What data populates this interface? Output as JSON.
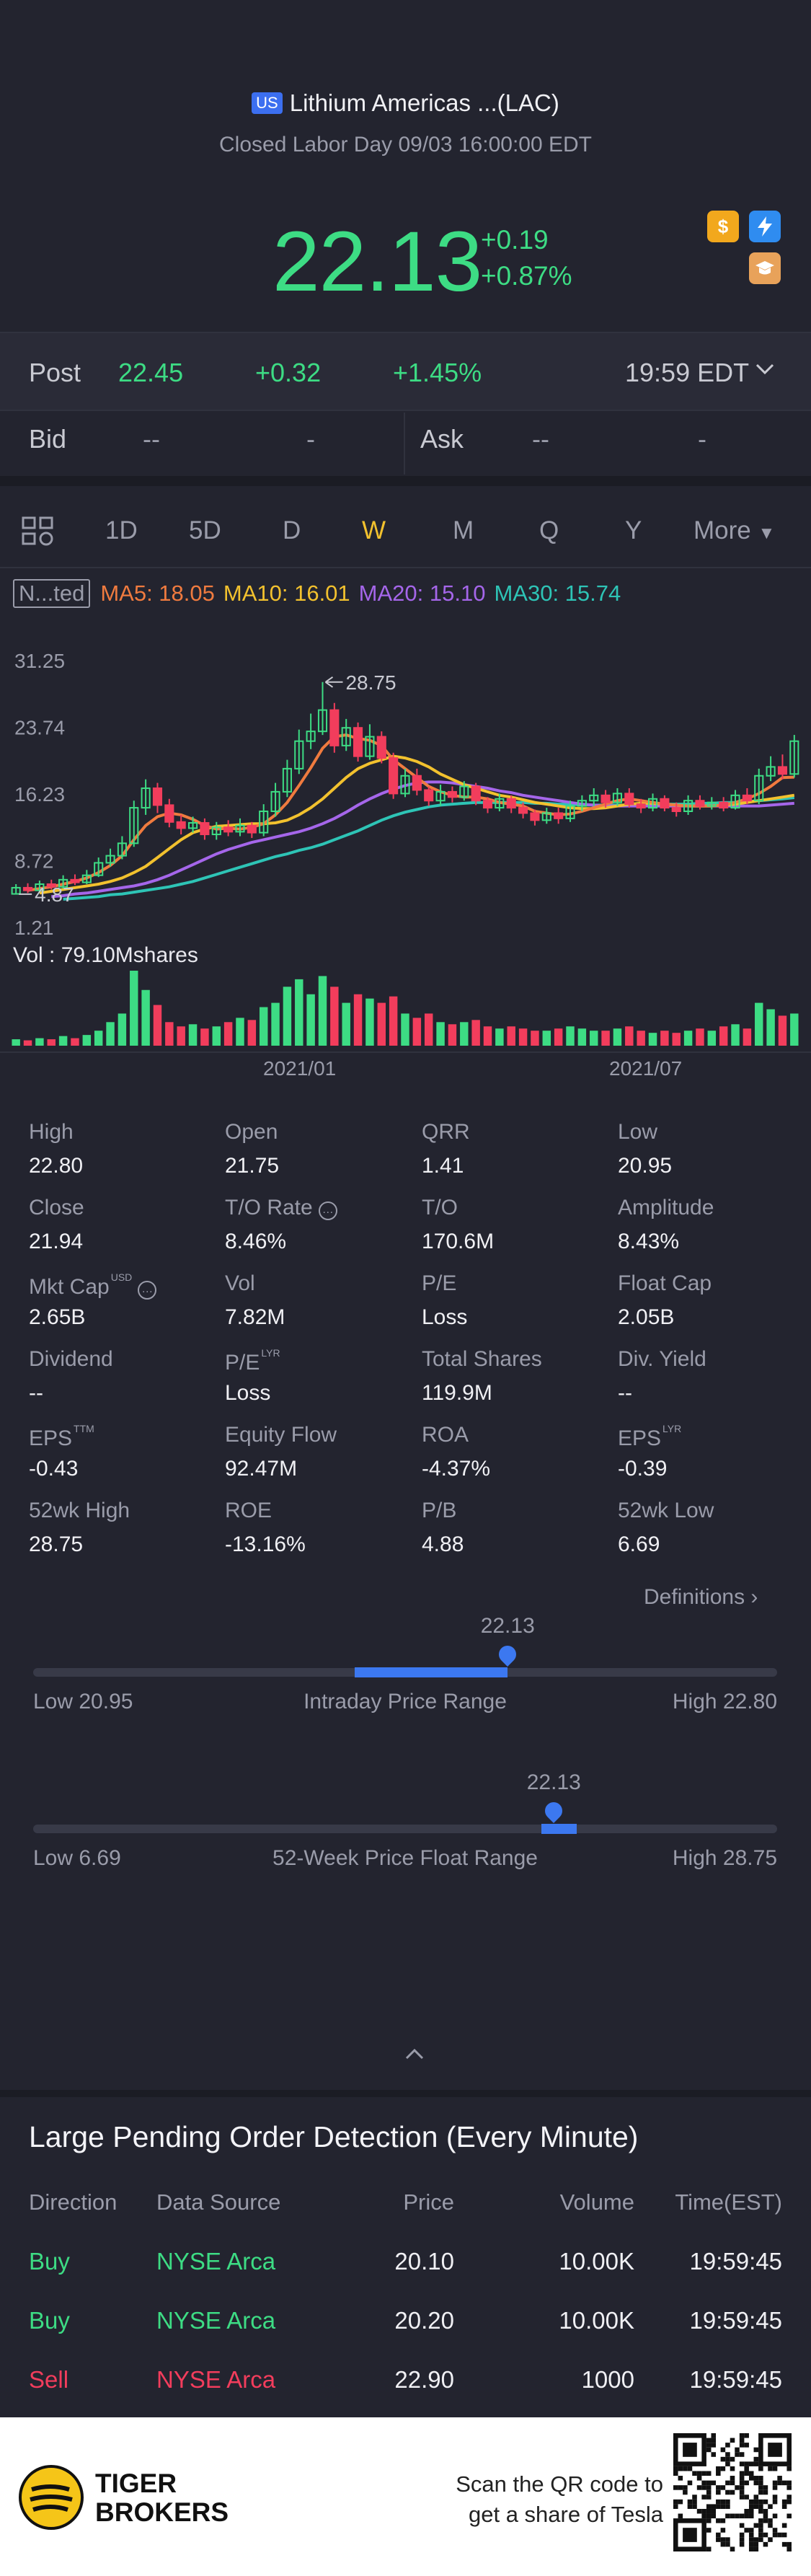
{
  "header": {
    "market_badge": "US",
    "title": "Lithium Americas ...(LAC)",
    "status": "Closed Labor Day 09/03 16:00:00 EDT",
    "price": "22.13",
    "change": "+0.19",
    "change_pct": "+0.87%",
    "icons": [
      "dollar-icon",
      "lightning-icon",
      "education-icon"
    ]
  },
  "post": {
    "label": "Post",
    "price": "22.45",
    "change": "+0.32",
    "change_pct": "+1.45%",
    "time": "19:59 EDT"
  },
  "quote": {
    "bid_label": "Bid",
    "bid_price": "--",
    "bid_size": "-",
    "ask_label": "Ask",
    "ask_price": "--",
    "ask_size": "-"
  },
  "tabs": {
    "items": [
      "1D",
      "5D",
      "D",
      "W",
      "M",
      "Q",
      "Y",
      "More"
    ],
    "active": "W"
  },
  "indicators": {
    "box_label": "N...ted",
    "ma5": "MA5: 18.05",
    "ma10": "MA10: 16.01",
    "ma20": "MA20: 15.10",
    "ma30": "MA30: 15.74",
    "colors": {
      "ma5": "#f07b3f",
      "ma10": "#f2c12e",
      "ma20": "#a566ea",
      "ma30": "#2ec4b6"
    }
  },
  "chart_data": {
    "type": "candlestick",
    "y_tick_labels": [
      "31.25",
      "23.74",
      "16.23",
      "8.72",
      "1.21"
    ],
    "ylim": [
      1.21,
      31.25
    ],
    "high_annotation": "28.75",
    "low_annotation": "4.87",
    "x_tick_labels": [
      "2021/01",
      "2021/07"
    ],
    "volume_label": "Vol  : 79.10Mshares",
    "candles": [
      {
        "o": 4.9,
        "c": 5.6,
        "h": 6.0,
        "l": 4.87
      },
      {
        "o": 5.6,
        "c": 5.3,
        "h": 6.1,
        "l": 5.0
      },
      {
        "o": 5.3,
        "c": 6.0,
        "h": 6.4,
        "l": 5.1
      },
      {
        "o": 6.0,
        "c": 5.7,
        "h": 6.5,
        "l": 5.4
      },
      {
        "o": 5.7,
        "c": 6.5,
        "h": 7.0,
        "l": 5.5
      },
      {
        "o": 6.5,
        "c": 6.2,
        "h": 7.1,
        "l": 5.9
      },
      {
        "o": 6.2,
        "c": 7.0,
        "h": 7.6,
        "l": 6.0
      },
      {
        "o": 7.0,
        "c": 8.4,
        "h": 9.0,
        "l": 6.8
      },
      {
        "o": 8.4,
        "c": 9.2,
        "h": 10.0,
        "l": 8.0
      },
      {
        "o": 9.2,
        "c": 10.6,
        "h": 11.4,
        "l": 8.8
      },
      {
        "o": 10.6,
        "c": 14.6,
        "h": 15.4,
        "l": 10.2
      },
      {
        "o": 14.6,
        "c": 16.8,
        "h": 17.8,
        "l": 13.8
      },
      {
        "o": 16.8,
        "c": 14.9,
        "h": 17.4,
        "l": 14.0
      },
      {
        "o": 14.9,
        "c": 13.0,
        "h": 15.6,
        "l": 12.4
      },
      {
        "o": 13.0,
        "c": 12.3,
        "h": 13.8,
        "l": 11.6
      },
      {
        "o": 12.3,
        "c": 12.9,
        "h": 13.6,
        "l": 11.8
      },
      {
        "o": 12.9,
        "c": 11.6,
        "h": 13.4,
        "l": 11.0
      },
      {
        "o": 11.6,
        "c": 12.4,
        "h": 13.0,
        "l": 11.0
      },
      {
        "o": 12.4,
        "c": 11.9,
        "h": 13.2,
        "l": 11.4
      },
      {
        "o": 11.9,
        "c": 12.6,
        "h": 13.4,
        "l": 11.4
      },
      {
        "o": 12.6,
        "c": 11.8,
        "h": 13.0,
        "l": 11.2
      },
      {
        "o": 11.8,
        "c": 14.2,
        "h": 15.0,
        "l": 11.4
      },
      {
        "o": 14.2,
        "c": 16.4,
        "h": 17.4,
        "l": 13.6
      },
      {
        "o": 16.4,
        "c": 19.0,
        "h": 20.0,
        "l": 15.8
      },
      {
        "o": 19.0,
        "c": 22.1,
        "h": 23.4,
        "l": 18.4
      },
      {
        "o": 22.1,
        "c": 23.2,
        "h": 25.2,
        "l": 21.2
      },
      {
        "o": 23.2,
        "c": 25.6,
        "h": 28.75,
        "l": 22.8
      },
      {
        "o": 25.6,
        "c": 21.6,
        "h": 26.4,
        "l": 20.8
      },
      {
        "o": 21.6,
        "c": 23.6,
        "h": 24.6,
        "l": 21.0
      },
      {
        "o": 23.6,
        "c": 20.4,
        "h": 24.2,
        "l": 19.8
      },
      {
        "o": 20.4,
        "c": 22.6,
        "h": 24.0,
        "l": 20.0
      },
      {
        "o": 22.6,
        "c": 20.2,
        "h": 23.2,
        "l": 19.6
      },
      {
        "o": 20.2,
        "c": 16.2,
        "h": 20.8,
        "l": 15.6
      },
      {
        "o": 16.2,
        "c": 18.2,
        "h": 19.0,
        "l": 15.8
      },
      {
        "o": 18.2,
        "c": 16.6,
        "h": 19.0,
        "l": 16.0
      },
      {
        "o": 16.6,
        "c": 15.4,
        "h": 17.0,
        "l": 14.8
      },
      {
        "o": 15.4,
        "c": 16.4,
        "h": 17.2,
        "l": 14.8
      },
      {
        "o": 16.4,
        "c": 15.8,
        "h": 17.0,
        "l": 15.2
      },
      {
        "o": 15.8,
        "c": 17.0,
        "h": 17.6,
        "l": 15.4
      },
      {
        "o": 17.0,
        "c": 15.4,
        "h": 17.4,
        "l": 14.9
      },
      {
        "o": 15.4,
        "c": 14.6,
        "h": 15.8,
        "l": 14.0
      },
      {
        "o": 14.6,
        "c": 15.6,
        "h": 16.2,
        "l": 14.2
      },
      {
        "o": 15.6,
        "c": 14.6,
        "h": 16.0,
        "l": 14.0
      },
      {
        "o": 14.6,
        "c": 14.0,
        "h": 15.2,
        "l": 13.4
      },
      {
        "o": 14.0,
        "c": 13.2,
        "h": 14.4,
        "l": 12.6
      },
      {
        "o": 13.2,
        "c": 14.0,
        "h": 14.6,
        "l": 12.8
      },
      {
        "o": 14.0,
        "c": 13.4,
        "h": 14.6,
        "l": 12.8
      },
      {
        "o": 13.4,
        "c": 14.8,
        "h": 15.4,
        "l": 13.0
      },
      {
        "o": 14.8,
        "c": 15.4,
        "h": 16.0,
        "l": 14.2
      },
      {
        "o": 15.4,
        "c": 16.0,
        "h": 16.8,
        "l": 14.8
      },
      {
        "o": 16.0,
        "c": 15.2,
        "h": 16.6,
        "l": 14.6
      },
      {
        "o": 15.2,
        "c": 16.2,
        "h": 16.8,
        "l": 14.8
      },
      {
        "o": 16.2,
        "c": 15.0,
        "h": 16.8,
        "l": 14.6
      },
      {
        "o": 15.0,
        "c": 14.6,
        "h": 15.6,
        "l": 14.0
      },
      {
        "o": 14.6,
        "c": 15.6,
        "h": 16.2,
        "l": 14.2
      },
      {
        "o": 15.6,
        "c": 14.6,
        "h": 16.0,
        "l": 14.2
      },
      {
        "o": 14.6,
        "c": 14.2,
        "h": 15.2,
        "l": 13.6
      },
      {
        "o": 14.2,
        "c": 15.4,
        "h": 16.0,
        "l": 13.8
      },
      {
        "o": 15.4,
        "c": 14.8,
        "h": 16.0,
        "l": 14.4
      },
      {
        "o": 14.8,
        "c": 15.2,
        "h": 15.8,
        "l": 14.4
      },
      {
        "o": 15.2,
        "c": 14.6,
        "h": 15.8,
        "l": 14.2
      },
      {
        "o": 14.6,
        "c": 16.0,
        "h": 16.6,
        "l": 14.4
      },
      {
        "o": 16.0,
        "c": 15.4,
        "h": 16.8,
        "l": 15.0
      },
      {
        "o": 15.4,
        "c": 18.2,
        "h": 19.0,
        "l": 15.0
      },
      {
        "o": 18.2,
        "c": 19.2,
        "h": 20.4,
        "l": 17.6
      },
      {
        "o": 19.2,
        "c": 18.4,
        "h": 20.6,
        "l": 17.8
      },
      {
        "o": 18.4,
        "c": 22.1,
        "h": 22.8,
        "l": 18.0
      }
    ],
    "volume": [
      {
        "v": 6,
        "up": true
      },
      {
        "v": 5,
        "up": false
      },
      {
        "v": 7,
        "up": true
      },
      {
        "v": 6,
        "up": false
      },
      {
        "v": 9,
        "up": true
      },
      {
        "v": 7,
        "up": false
      },
      {
        "v": 10,
        "up": true
      },
      {
        "v": 14,
        "up": true
      },
      {
        "v": 22,
        "up": true
      },
      {
        "v": 30,
        "up": true
      },
      {
        "v": 70,
        "up": true
      },
      {
        "v": 52,
        "up": true
      },
      {
        "v": 38,
        "up": false
      },
      {
        "v": 22,
        "up": false
      },
      {
        "v": 18,
        "up": false
      },
      {
        "v": 20,
        "up": true
      },
      {
        "v": 16,
        "up": false
      },
      {
        "v": 18,
        "up": true
      },
      {
        "v": 22,
        "up": false
      },
      {
        "v": 26,
        "up": true
      },
      {
        "v": 24,
        "up": false
      },
      {
        "v": 36,
        "up": true
      },
      {
        "v": 40,
        "up": true
      },
      {
        "v": 55,
        "up": true
      },
      {
        "v": 62,
        "up": true
      },
      {
        "v": 48,
        "up": true
      },
      {
        "v": 65,
        "up": true
      },
      {
        "v": 55,
        "up": false
      },
      {
        "v": 40,
        "up": true
      },
      {
        "v": 48,
        "up": false
      },
      {
        "v": 44,
        "up": true
      },
      {
        "v": 40,
        "up": false
      },
      {
        "v": 46,
        "up": false
      },
      {
        "v": 30,
        "up": true
      },
      {
        "v": 26,
        "up": false
      },
      {
        "v": 30,
        "up": false
      },
      {
        "v": 22,
        "up": true
      },
      {
        "v": 20,
        "up": false
      },
      {
        "v": 22,
        "up": true
      },
      {
        "v": 24,
        "up": false
      },
      {
        "v": 18,
        "up": false
      },
      {
        "v": 16,
        "up": true
      },
      {
        "v": 18,
        "up": false
      },
      {
        "v": 16,
        "up": false
      },
      {
        "v": 14,
        "up": false
      },
      {
        "v": 14,
        "up": true
      },
      {
        "v": 16,
        "up": false
      },
      {
        "v": 18,
        "up": true
      },
      {
        "v": 16,
        "up": true
      },
      {
        "v": 14,
        "up": true
      },
      {
        "v": 14,
        "up": false
      },
      {
        "v": 16,
        "up": true
      },
      {
        "v": 18,
        "up": false
      },
      {
        "v": 14,
        "up": false
      },
      {
        "v": 12,
        "up": true
      },
      {
        "v": 14,
        "up": false
      },
      {
        "v": 12,
        "up": false
      },
      {
        "v": 14,
        "up": true
      },
      {
        "v": 16,
        "up": false
      },
      {
        "v": 14,
        "up": true
      },
      {
        "v": 18,
        "up": false
      },
      {
        "v": 20,
        "up": true
      },
      {
        "v": 16,
        "up": false
      },
      {
        "v": 40,
        "up": true
      },
      {
        "v": 34,
        "up": true
      },
      {
        "v": 28,
        "up": false
      },
      {
        "v": 30,
        "up": true
      }
    ],
    "ma": {
      "ma5": [
        5.3,
        5.5,
        5.7,
        6.0,
        6.3,
        6.7,
        7.3,
        8.1,
        9.2,
        11.0,
        12.6,
        13.6,
        14.0,
        13.8,
        13.3,
        12.6,
        12.2,
        12.3,
        12.2,
        12.4,
        12.8,
        13.8,
        15.2,
        17.1,
        19.1,
        21.3,
        22.6,
        22.8,
        22.4,
        22.2,
        21.6,
        20.0,
        19.0,
        18.0,
        17.0,
        16.4,
        16.0,
        15.8,
        15.8,
        15.6,
        15.2,
        15.0,
        14.8,
        14.2,
        14.0,
        13.8,
        13.9,
        14.2,
        14.6,
        15.0,
        15.4,
        15.6,
        15.4,
        15.2,
        15.0,
        14.9,
        14.8,
        14.8,
        14.8,
        14.9,
        15.2,
        15.6,
        16.2,
        17.0,
        18.0,
        18.05
      ],
      "ma10": [
        5.0,
        5.2,
        5.4,
        5.6,
        5.8,
        6.0,
        6.3,
        6.7,
        7.3,
        8.0,
        9.0,
        10.0,
        11.0,
        11.8,
        12.2,
        12.5,
        12.6,
        12.7,
        12.8,
        12.8,
        12.9,
        13.2,
        13.8,
        14.6,
        15.6,
        16.8,
        18.0,
        19.0,
        19.6,
        20.0,
        20.4,
        20.2,
        19.8,
        19.2,
        18.4,
        17.8,
        17.2,
        16.8,
        16.4,
        16.0,
        15.8,
        15.5,
        15.2,
        15.0,
        14.8,
        14.6,
        14.5,
        14.5,
        14.6,
        14.8,
        15.0,
        15.1,
        15.1,
        15.0,
        14.9,
        14.8,
        14.8,
        14.8,
        14.9,
        15.0,
        15.2,
        15.4,
        15.6,
        15.8,
        16.01
      ],
      "ma20": [
        4.6,
        4.7,
        4.9,
        5.0,
        5.2,
        5.4,
        5.6,
        5.8,
        6.1,
        6.5,
        7.0,
        7.6,
        8.2,
        8.8,
        9.4,
        9.9,
        10.3,
        10.7,
        11.0,
        11.3,
        11.6,
        11.9,
        12.3,
        12.8,
        13.4,
        14.1,
        14.9,
        15.6,
        16.2,
        16.7,
        17.1,
        17.4,
        17.5,
        17.5,
        17.4,
        17.2,
        17.0,
        16.8,
        16.5,
        16.3,
        16.0,
        15.8,
        15.6,
        15.4,
        15.2,
        15.0,
        14.9,
        14.8,
        14.8,
        14.8,
        14.8,
        14.8,
        14.8,
        14.8,
        14.8,
        14.8,
        14.8,
        14.8,
        14.8,
        14.8,
        14.8,
        14.9,
        15.0,
        15.1
      ],
      "ma30": [
        4.3,
        4.4,
        4.5,
        4.6,
        4.8,
        4.9,
        5.1,
        5.3,
        5.5,
        5.7,
        6.0,
        6.3,
        6.7,
        7.1,
        7.5,
        7.9,
        8.3,
        8.7,
        9.1,
        9.4,
        9.8,
        10.1,
        10.5,
        11.0,
        11.5,
        12.0,
        12.6,
        13.2,
        13.7,
        14.1,
        14.4,
        14.7,
        14.9,
        15.0,
        15.1,
        15.2,
        15.2,
        15.2,
        15.2,
        15.2,
        15.1,
        15.1,
        15.0,
        15.0,
        14.9,
        14.9,
        14.9,
        14.9,
        14.9,
        14.9,
        15.0,
        15.0,
        15.0,
        15.0,
        15.1,
        15.1,
        15.2,
        15.2,
        15.3,
        15.4,
        15.5,
        15.6,
        15.74
      ]
    }
  },
  "stats": {
    "rows": [
      [
        {
          "label": "High",
          "value": "22.80"
        },
        {
          "label": "Open",
          "value": "21.75"
        },
        {
          "label": "QRR",
          "value": "1.41"
        },
        {
          "label": "Low",
          "value": "20.95"
        }
      ],
      [
        {
          "label": "Close",
          "value": "21.94"
        },
        {
          "label": "T/O Rate",
          "value": "8.46%"
        },
        {
          "label": "T/O",
          "value": "170.6M"
        },
        {
          "label": "Amplitude",
          "value": "8.43%"
        }
      ],
      [
        {
          "label": "Mkt Cap",
          "value": "2.65B"
        },
        {
          "label": "Vol",
          "value": "7.82M"
        },
        {
          "label": "P/E",
          "value": "Loss"
        },
        {
          "label": "Float Cap",
          "value": "2.05B"
        }
      ],
      [
        {
          "label": "Dividend",
          "value": "--"
        },
        {
          "label": "P/E",
          "value": "Loss"
        },
        {
          "label": "Total Shares",
          "value": "119.9M"
        },
        {
          "label": "Div. Yield",
          "value": "--"
        }
      ],
      [
        {
          "label": "EPS",
          "value": "-0.43"
        },
        {
          "label": "Equity Flow",
          "value": "92.47M"
        },
        {
          "label": "ROA",
          "value": "-4.37%"
        },
        {
          "label": "EPS",
          "value": "-0.39"
        }
      ],
      [
        {
          "label": "52wk High",
          "value": "28.75"
        },
        {
          "label": "ROE",
          "value": "-13.16%"
        },
        {
          "label": "P/B",
          "value": "4.88"
        },
        {
          "label": "52wk Low",
          "value": "6.69"
        }
      ]
    ],
    "sup_usd": "USD",
    "sup_lyr": "LYR",
    "sup_ttm": "TTM",
    "definitions_link": "Definitions"
  },
  "ranges": {
    "intraday": {
      "label": "Intraday Price Range",
      "low": "Low 20.95",
      "high": "High 22.80",
      "current": "22.13",
      "low_value": 20.95,
      "high_value": 22.8,
      "current_value": 22.13,
      "open_value": 21.75
    },
    "week52": {
      "label": "52-Week Price Float Range",
      "low": "Low 6.69",
      "high": "High 28.75",
      "current": "22.13",
      "low_value": 6.69,
      "high_value": 28.75,
      "current_value": 22.13,
      "band_from_value": 21.75,
      "band_to_value": 22.8
    }
  },
  "orders": {
    "title": "Large Pending Order Detection (Every Minute)",
    "columns": [
      "Direction",
      "Data Source",
      "Price",
      "Volume",
      "Time(EST)"
    ],
    "rows": [
      {
        "direction": "Buy",
        "source": "NYSE Arca",
        "price": "20.10",
        "volume": "10.00K",
        "time": "19:59:45",
        "side": "buy"
      },
      {
        "direction": "Buy",
        "source": "NYSE Arca",
        "price": "20.20",
        "volume": "10.00K",
        "time": "19:59:45",
        "side": "buy"
      },
      {
        "direction": "Sell",
        "source": "NYSE Arca",
        "price": "22.90",
        "volume": "1000",
        "time": "19:59:45",
        "side": "sell"
      }
    ]
  },
  "footer": {
    "brand_line1": "TIGER",
    "brand_line2": "BROKERS",
    "qr_line1": "Scan the QR code to",
    "qr_line2": "get a share of Tesla"
  }
}
